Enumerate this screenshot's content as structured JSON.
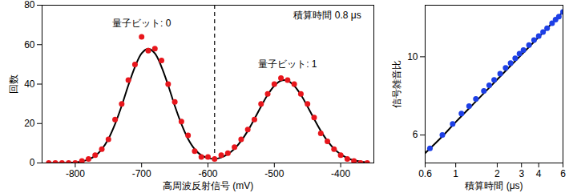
{
  "chart_data": [
    {
      "type": "scatter",
      "xlabel": "高周波反射信号 (mV)",
      "ylabel": "回数",
      "xlim": [
        -850,
        -350
      ],
      "xticks": [
        -800,
        -700,
        -600,
        -500,
        -400
      ],
      "ylim": [
        0,
        80
      ],
      "yticks": [
        0,
        20,
        40,
        60,
        80
      ],
      "grid": false,
      "x": [
        -840,
        -830,
        -820,
        -810,
        -800,
        -790,
        -780,
        -770,
        -760,
        -750,
        -740,
        -730,
        -720,
        -710,
        -700,
        -690,
        -680,
        -670,
        -660,
        -650,
        -640,
        -630,
        -620,
        -610,
        -600,
        -590,
        -580,
        -570,
        -560,
        -550,
        -540,
        -530,
        -520,
        -510,
        -500,
        -490,
        -480,
        -470,
        -460,
        -450,
        -440,
        -430,
        -420,
        -410,
        -400,
        -390,
        -380,
        -370,
        -360
      ],
      "values": [
        0,
        0,
        0,
        0,
        0,
        1,
        2,
        4,
        7,
        12,
        22,
        30,
        42,
        50,
        64,
        57,
        58,
        52,
        40,
        31,
        21,
        14,
        6,
        3,
        3,
        2,
        4,
        5,
        8,
        12,
        17,
        22,
        30,
        35,
        40,
        43,
        42,
        40,
        35,
        30,
        23,
        15,
        11,
        7,
        4,
        2,
        1,
        0,
        0
      ],
      "color": "#e8161c",
      "marker": "circle",
      "fit": {
        "type": "line",
        "x": [
          -840,
          -830,
          -820,
          -810,
          -800,
          -790,
          -780,
          -770,
          -760,
          -750,
          -740,
          -730,
          -720,
          -710,
          -700,
          -690,
          -680,
          -670,
          -660,
          -650,
          -640,
          -630,
          -620,
          -610,
          -600,
          -590,
          -580,
          -570,
          -560,
          -550,
          -540,
          -530,
          -520,
          -510,
          -500,
          -490,
          -480,
          -470,
          -460,
          -450,
          -440,
          -430,
          -420,
          -410,
          -400,
          -390,
          -380,
          -370,
          -360
        ],
        "values": [
          0,
          0,
          0,
          0.1,
          0.3,
          0.8,
          1.8,
          3.6,
          7.0,
          12.2,
          19.7,
          29.0,
          39.4,
          48.7,
          55.6,
          58.0,
          55.6,
          48.7,
          39.4,
          29.0,
          19.7,
          12.2,
          7.0,
          3.9,
          2.5,
          2.1,
          2.8,
          4.5,
          7.2,
          11.2,
          16.3,
          22.3,
          28.6,
          34.6,
          39.1,
          41.7,
          41.7,
          39.1,
          34.6,
          28.6,
          22.3,
          16.3,
          11.2,
          7.2,
          4.4,
          2.5,
          1.3,
          0.7,
          0.3
        ],
        "color": "#000000",
        "line_style": "solid"
      },
      "threshold": {
        "value": -590,
        "color": "#000000",
        "line_style": "dashed"
      },
      "annotations": [
        {
          "text": "量子ビット: 0",
          "x": -700,
          "y": 71
        },
        {
          "text": "量子ビット: 1",
          "x": -480,
          "y": 50
        },
        {
          "text": "積算時間 0.8 μs",
          "x": -420,
          "y": 75
        }
      ]
    },
    {
      "type": "scatter",
      "xlabel": "積算時間 (μs)",
      "ylabel": "信号雑音比",
      "log": true,
      "xlim": [
        0.6,
        6
      ],
      "xticks": [
        0.6,
        1,
        2,
        3,
        4,
        6
      ],
      "ylim": [
        5,
        14
      ],
      "yticks": [
        6,
        10
      ],
      "grid": false,
      "x": [
        0.65,
        0.8,
        0.95,
        1.1,
        1.25,
        1.4,
        1.6,
        1.75,
        1.9,
        2.1,
        2.3,
        2.5,
        2.7,
        2.9,
        3.1,
        3.4,
        3.7,
        4.0,
        4.3,
        4.6,
        5.0,
        5.3,
        5.6,
        6.0
      ],
      "values": [
        5.5,
        6.0,
        6.45,
        6.9,
        7.25,
        7.6,
        8.0,
        8.3,
        8.6,
        8.95,
        9.3,
        9.6,
        9.9,
        10.2,
        10.45,
        10.8,
        11.15,
        11.45,
        11.75,
        12.05,
        12.45,
        12.75,
        13.0,
        13.4
      ],
      "color": "#1d3fe6",
      "marker": "circle",
      "fit": {
        "type": "line",
        "x": [
          0.6,
          0.8,
          1,
          1.5,
          2,
          3,
          4,
          5,
          6
        ],
        "values": [
          5.33,
          5.95,
          6.53,
          7.68,
          8.62,
          10.14,
          11.37,
          12.45,
          13.4
        ],
        "color": "#000000",
        "line_style": "solid"
      }
    }
  ]
}
